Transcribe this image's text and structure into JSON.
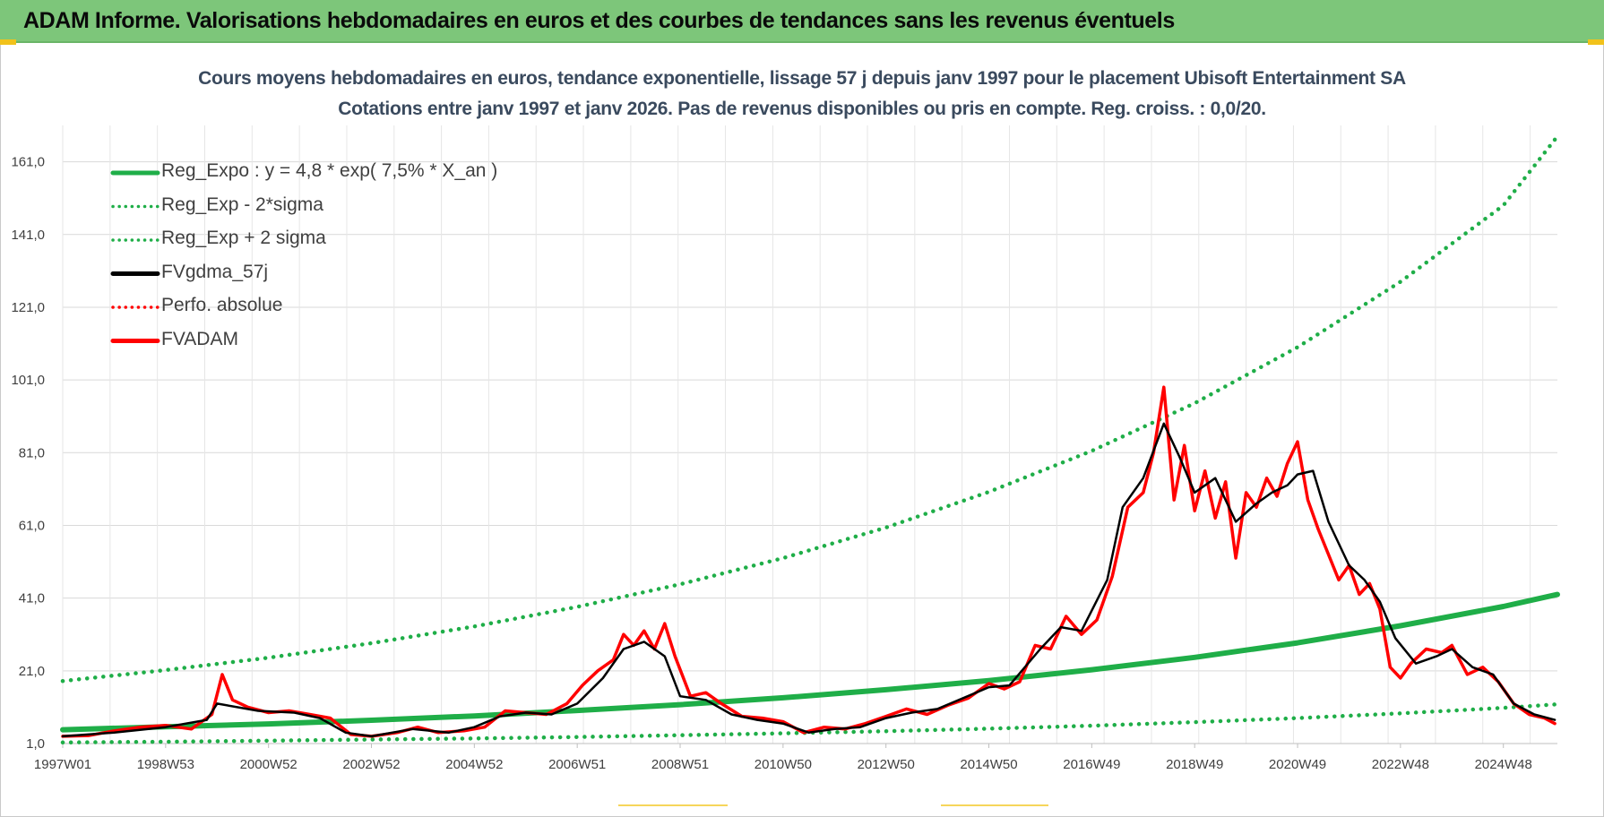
{
  "header": {
    "title": "ADAM Informe. Valorisations hebdomadaires en euros et des courbes de tendances sans les revenus éventuels"
  },
  "colors": {
    "header_bg": "#7dc67a",
    "trend_green": "#1fae48",
    "price_red": "#ff0000",
    "smooth_black": "#000000",
    "grid": "#d9d9d9"
  },
  "chart_data": {
    "type": "line",
    "title": "Cours moyens hebdomadaires en euros, tendance exponentielle, lissage 57 j depuis janv 1997 pour le placement Ubisoft Entertainment SA",
    "subtitle": "Cotations entre janv 1997 et janv 2026. Pas de revenus disponibles ou pris en compte. Reg. croiss. : 0,0/20.",
    "xlabel": "",
    "ylabel": "",
    "x_range": [
      1997.0,
      2026.05
    ],
    "ylim": [
      1.0,
      171.0
    ],
    "y_ticks": [
      "1,0",
      "21,0",
      "41,0",
      "61,0",
      "81,0",
      "101,0",
      "121,0",
      "141,0",
      "161,0"
    ],
    "y_tick_values": [
      1,
      21,
      41,
      61,
      81,
      101,
      121,
      141,
      161
    ],
    "x_ticks": [
      "1997W01",
      "1998W53",
      "2000W52",
      "2002W52",
      "2004W52",
      "2006W51",
      "2008W51",
      "2010W50",
      "2012W50",
      "2014W50",
      "2016W49",
      "2018W49",
      "2020W49",
      "2022W48",
      "2024W48"
    ],
    "x_tick_values": [
      1997.0,
      1999.0,
      2001.0,
      2003.0,
      2005.0,
      2007.0,
      2009.0,
      2011.0,
      2013.0,
      2015.0,
      2017.0,
      2019.0,
      2021.0,
      2023.0,
      2025.0
    ],
    "grid": true,
    "legend_position": "top-left",
    "legend": [
      "Reg_Expo : y = 4,8 * exp( 7,5% *  X_an )",
      "Reg_Exp - 2*sigma",
      "Reg_Exp + 2 sigma",
      "FVgdma_57j",
      "Perfo. absolue",
      "FVADAM"
    ],
    "series": [
      {
        "name": "Reg_Expo : y = 4,8 * exp( 7,5% *  X_an )",
        "style": "solid",
        "color": "#1fae48",
        "x": [
          1997,
          1999,
          2001,
          2003,
          2005,
          2007,
          2009,
          2011,
          2013,
          2015,
          2017,
          2019,
          2021,
          2023,
          2025,
          2026.05
        ],
        "values": [
          4.8,
          5.6,
          6.4,
          7.4,
          8.6,
          10.1,
          11.7,
          13.6,
          15.8,
          18.3,
          21.3,
          24.7,
          28.7,
          33.4,
          38.7,
          42.0
        ]
      },
      {
        "name": "Reg_Exp - 2*sigma",
        "style": "dotted",
        "color": "#1fae48",
        "x": [
          1997,
          1999,
          2001,
          2003,
          2005,
          2007,
          2009,
          2011,
          2013,
          2015,
          2017,
          2019,
          2021,
          2023,
          2025,
          2026.05
        ],
        "values": [
          1.3,
          1.5,
          1.8,
          2.1,
          2.4,
          2.8,
          3.3,
          3.8,
          4.4,
          5.1,
          5.9,
          6.9,
          8.0,
          9.3,
          10.8,
          11.8
        ]
      },
      {
        "name": "Reg_Exp + 2 sigma",
        "style": "dotted",
        "color": "#1fae48",
        "x": [
          1997,
          1999,
          2001,
          2003,
          2005,
          2007,
          2009,
          2011,
          2013,
          2015,
          2017,
          2019,
          2021,
          2023,
          2025,
          2026.05
        ],
        "values": [
          18.2,
          21.2,
          24.6,
          28.6,
          33.2,
          38.6,
          44.8,
          52.0,
          60.4,
          70.2,
          81.5,
          94.6,
          110.0,
          128.0,
          149.0,
          168.0
        ]
      },
      {
        "name": "FVgdma_57j",
        "style": "solid",
        "color": "#000000",
        "x": [
          1997.0,
          1998.0,
          1999.0,
          1999.8,
          2000.0,
          2000.8,
          2001.5,
          2002.0,
          2002.5,
          2003.0,
          2003.8,
          2004.5,
          2005.0,
          2005.5,
          2006.0,
          2006.5,
          2007.0,
          2007.5,
          2007.9,
          2008.3,
          2008.7,
          2009.0,
          2009.5,
          2010.0,
          2010.5,
          2011.0,
          2011.5,
          2012.0,
          2012.5,
          2013.0,
          2013.5,
          2014.0,
          2014.5,
          2015.0,
          2015.4,
          2016.0,
          2016.4,
          2016.8,
          2017.3,
          2017.6,
          2018.0,
          2018.4,
          2018.7,
          2019.0,
          2019.4,
          2019.8,
          2020.2,
          2020.5,
          2020.8,
          2021.0,
          2021.3,
          2021.6,
          2022.0,
          2022.3,
          2022.6,
          2022.9,
          2023.3,
          2023.7,
          2024.0,
          2024.4,
          2024.8,
          2025.2,
          2025.6,
          2026.0
        ],
        "values": [
          3.0,
          4.0,
          5.5,
          7.5,
          12.0,
          10.0,
          9.5,
          8.0,
          4.0,
          3.0,
          5.0,
          4.0,
          5.5,
          8.5,
          9.5,
          9.0,
          12.0,
          19.0,
          27.0,
          29.0,
          25.0,
          14.0,
          13.0,
          9.0,
          7.5,
          6.5,
          4.0,
          5.0,
          5.5,
          8.0,
          9.5,
          10.5,
          13.5,
          16.5,
          17.0,
          27.0,
          33.0,
          32.0,
          46.0,
          66.0,
          74.0,
          89.0,
          80.0,
          70.0,
          74.0,
          62.0,
          67.0,
          70.0,
          72.0,
          75.0,
          76.0,
          62.0,
          50.0,
          46.0,
          40.0,
          30.0,
          23.0,
          25.0,
          27.0,
          22.0,
          20.0,
          12.0,
          9.0,
          7.5
        ]
      },
      {
        "name": "FVADAM",
        "style": "solid",
        "color": "#ff0000",
        "x": [
          1997.0,
          1997.5,
          1998.0,
          1998.5,
          1999.0,
          1999.5,
          1999.9,
          2000.1,
          2000.3,
          2000.6,
          2001.0,
          2001.4,
          2001.8,
          2002.2,
          2002.6,
          2003.0,
          2003.5,
          2003.9,
          2004.3,
          2004.8,
          2005.2,
          2005.6,
          2006.0,
          2006.4,
          2006.8,
          2007.1,
          2007.4,
          2007.7,
          2007.9,
          2008.1,
          2008.3,
          2008.5,
          2008.7,
          2008.9,
          2009.2,
          2009.5,
          2009.8,
          2010.2,
          2010.6,
          2011.0,
          2011.4,
          2011.8,
          2012.2,
          2012.6,
          2013.0,
          2013.4,
          2013.8,
          2014.2,
          2014.6,
          2015.0,
          2015.3,
          2015.6,
          2015.9,
          2016.2,
          2016.5,
          2016.8,
          2017.1,
          2017.4,
          2017.7,
          2018.0,
          2018.2,
          2018.4,
          2018.6,
          2018.8,
          2019.0,
          2019.2,
          2019.4,
          2019.6,
          2019.8,
          2020.0,
          2020.2,
          2020.4,
          2020.6,
          2020.8,
          2021.0,
          2021.2,
          2021.4,
          2021.6,
          2021.8,
          2022.0,
          2022.2,
          2022.4,
          2022.6,
          2022.8,
          2023.0,
          2023.2,
          2023.5,
          2023.8,
          2024.0,
          2024.3,
          2024.6,
          2024.9,
          2025.2,
          2025.5,
          2025.8,
          2026.0
        ],
        "values": [
          3.0,
          3.2,
          4.5,
          5.5,
          6.0,
          5.0,
          9.0,
          20.0,
          13.0,
          11.0,
          9.5,
          10.0,
          9.0,
          8.0,
          3.5,
          3.0,
          4.0,
          5.5,
          4.0,
          4.5,
          5.5,
          10.0,
          9.5,
          9.0,
          12.0,
          17.0,
          21.0,
          24.0,
          31.0,
          28.0,
          32.0,
          27.0,
          34.0,
          25.0,
          14.0,
          15.0,
          12.0,
          8.5,
          8.0,
          7.0,
          4.0,
          5.5,
          5.0,
          6.5,
          8.5,
          10.5,
          9.0,
          11.5,
          13.5,
          17.5,
          16.0,
          18.0,
          28.0,
          27.0,
          36.0,
          31.0,
          35.0,
          47.0,
          66.0,
          70.0,
          81.0,
          99.0,
          68.0,
          83.0,
          65.0,
          76.0,
          63.0,
          73.0,
          52.0,
          70.0,
          66.0,
          74.0,
          69.0,
          78.0,
          84.0,
          68.0,
          60.0,
          53.0,
          46.0,
          50.0,
          42.0,
          45.0,
          38.0,
          22.0,
          19.0,
          23.0,
          27.0,
          26.0,
          28.0,
          20.0,
          22.0,
          18.0,
          12.0,
          9.0,
          8.0,
          6.5
        ]
      }
    ]
  }
}
